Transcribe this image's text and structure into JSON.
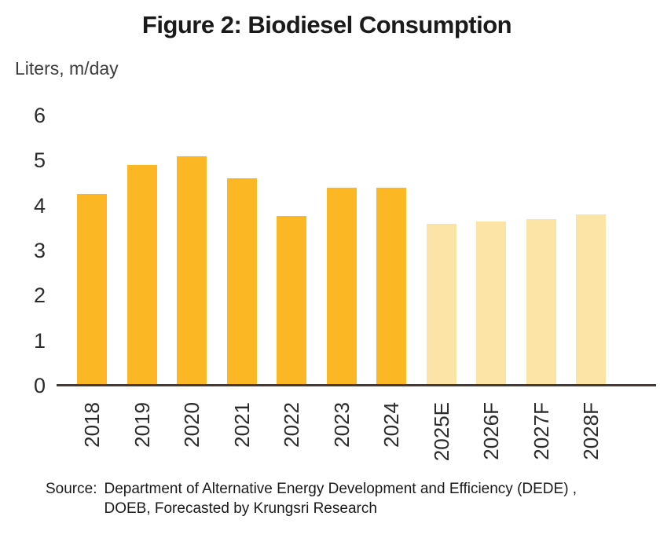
{
  "chart_data": {
    "type": "bar",
    "title": "Figure 2: Biodiesel Consumption",
    "unit_label": "Liters, m/day",
    "xlabel": "",
    "ylabel": "Liters, m/day",
    "categories": [
      "2018",
      "2019",
      "2020",
      "2021",
      "2022",
      "2023",
      "2024",
      "2025E",
      "2026F",
      "2027F",
      "2028F"
    ],
    "values": [
      4.25,
      4.9,
      5.1,
      4.6,
      3.77,
      4.4,
      4.4,
      3.6,
      3.65,
      3.7,
      3.8
    ],
    "yticks": [
      0,
      1,
      2,
      3,
      4,
      5,
      6
    ],
    "ylim": [
      0,
      6
    ],
    "grid": false,
    "legend": "none",
    "forecast_start_index": 7,
    "actual_color": "#FBB724",
    "forecast_color": "#FCE3A6",
    "axis_color": "#453931",
    "source": {
      "prefix": "Source:",
      "line1": "Department of Alternative Energy Development and Efficiency (DEDE) ,",
      "line2": "DOEB, Forecasted by Krungsri Research"
    }
  }
}
